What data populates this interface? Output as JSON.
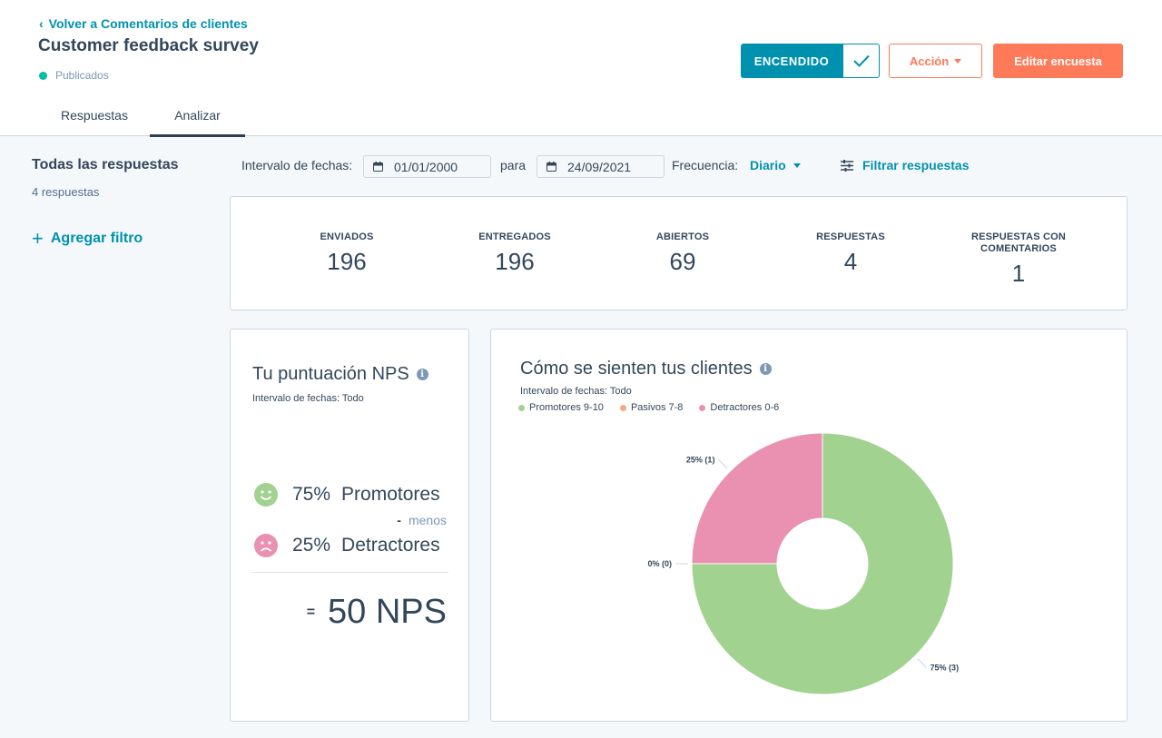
{
  "header": {
    "back_link": "Volver a Comentarios de clientes",
    "title": "Customer feedback survey",
    "status": "Publicados",
    "status_color": "#00bda5",
    "toggle_label": "ENCENDIDO",
    "action_label": "Acción",
    "edit_label": "Editar encuesta",
    "accent": "#0091ae",
    "primary": "#ff7a59"
  },
  "tabs": [
    {
      "label": "Respuestas",
      "active": false
    },
    {
      "label": "Analizar",
      "active": true
    }
  ],
  "sidebar": {
    "title": "Todas las respuestas",
    "count": "4 respuestas",
    "add_filter": "Agregar filtro"
  },
  "filters": {
    "date_range_label": "Intervalo de fechas:",
    "start_date": "01/01/2000",
    "to_label": "para",
    "end_date": "24/09/2021",
    "frequency_label": "Frecuencia:",
    "frequency_value": "Diario",
    "filter_responses": "Filtrar respuestas"
  },
  "stats": [
    {
      "label": "ENVIADOS",
      "value": "196"
    },
    {
      "label": "ENTREGADOS",
      "value": "196"
    },
    {
      "label": "ABIERTOS",
      "value": "69"
    },
    {
      "label": "RESPUESTAS",
      "value": "4"
    },
    {
      "label": "RESPUESTAS CON COMENTARIOS",
      "value": "1"
    }
  ],
  "nps": {
    "title": "Tu puntuación NPS",
    "subtitle": "Intervalo de fechas: Todo",
    "promoters_pct": "75%",
    "promoters_label": "Promotores",
    "minus_dash": "-",
    "minus_label": "menos",
    "detractors_pct": "25%",
    "detractors_label": "Detractores",
    "equals": "=",
    "score": "50 NPS",
    "icons": [
      "smile-icon",
      "frown-icon",
      "info-icon"
    ]
  },
  "chart": {
    "title": "Cómo se sienten tus clientes",
    "subtitle": "Intervalo de fechas: Todo"
  },
  "chart_data": {
    "type": "pie",
    "donut": true,
    "categories": [
      "Promotores 9-10",
      "Pasivos 7-8",
      "Detractores 0-6"
    ],
    "values": [
      3,
      0,
      1
    ],
    "percentages": [
      75,
      0,
      25
    ],
    "data_labels": [
      "75% (3)",
      "0% (0)",
      "25% (1)"
    ],
    "colors": [
      "#a2d28f",
      "#f8a683",
      "#ea90b1"
    ],
    "title": "Cómo se sienten tus clientes",
    "legend_position": "top-left"
  }
}
